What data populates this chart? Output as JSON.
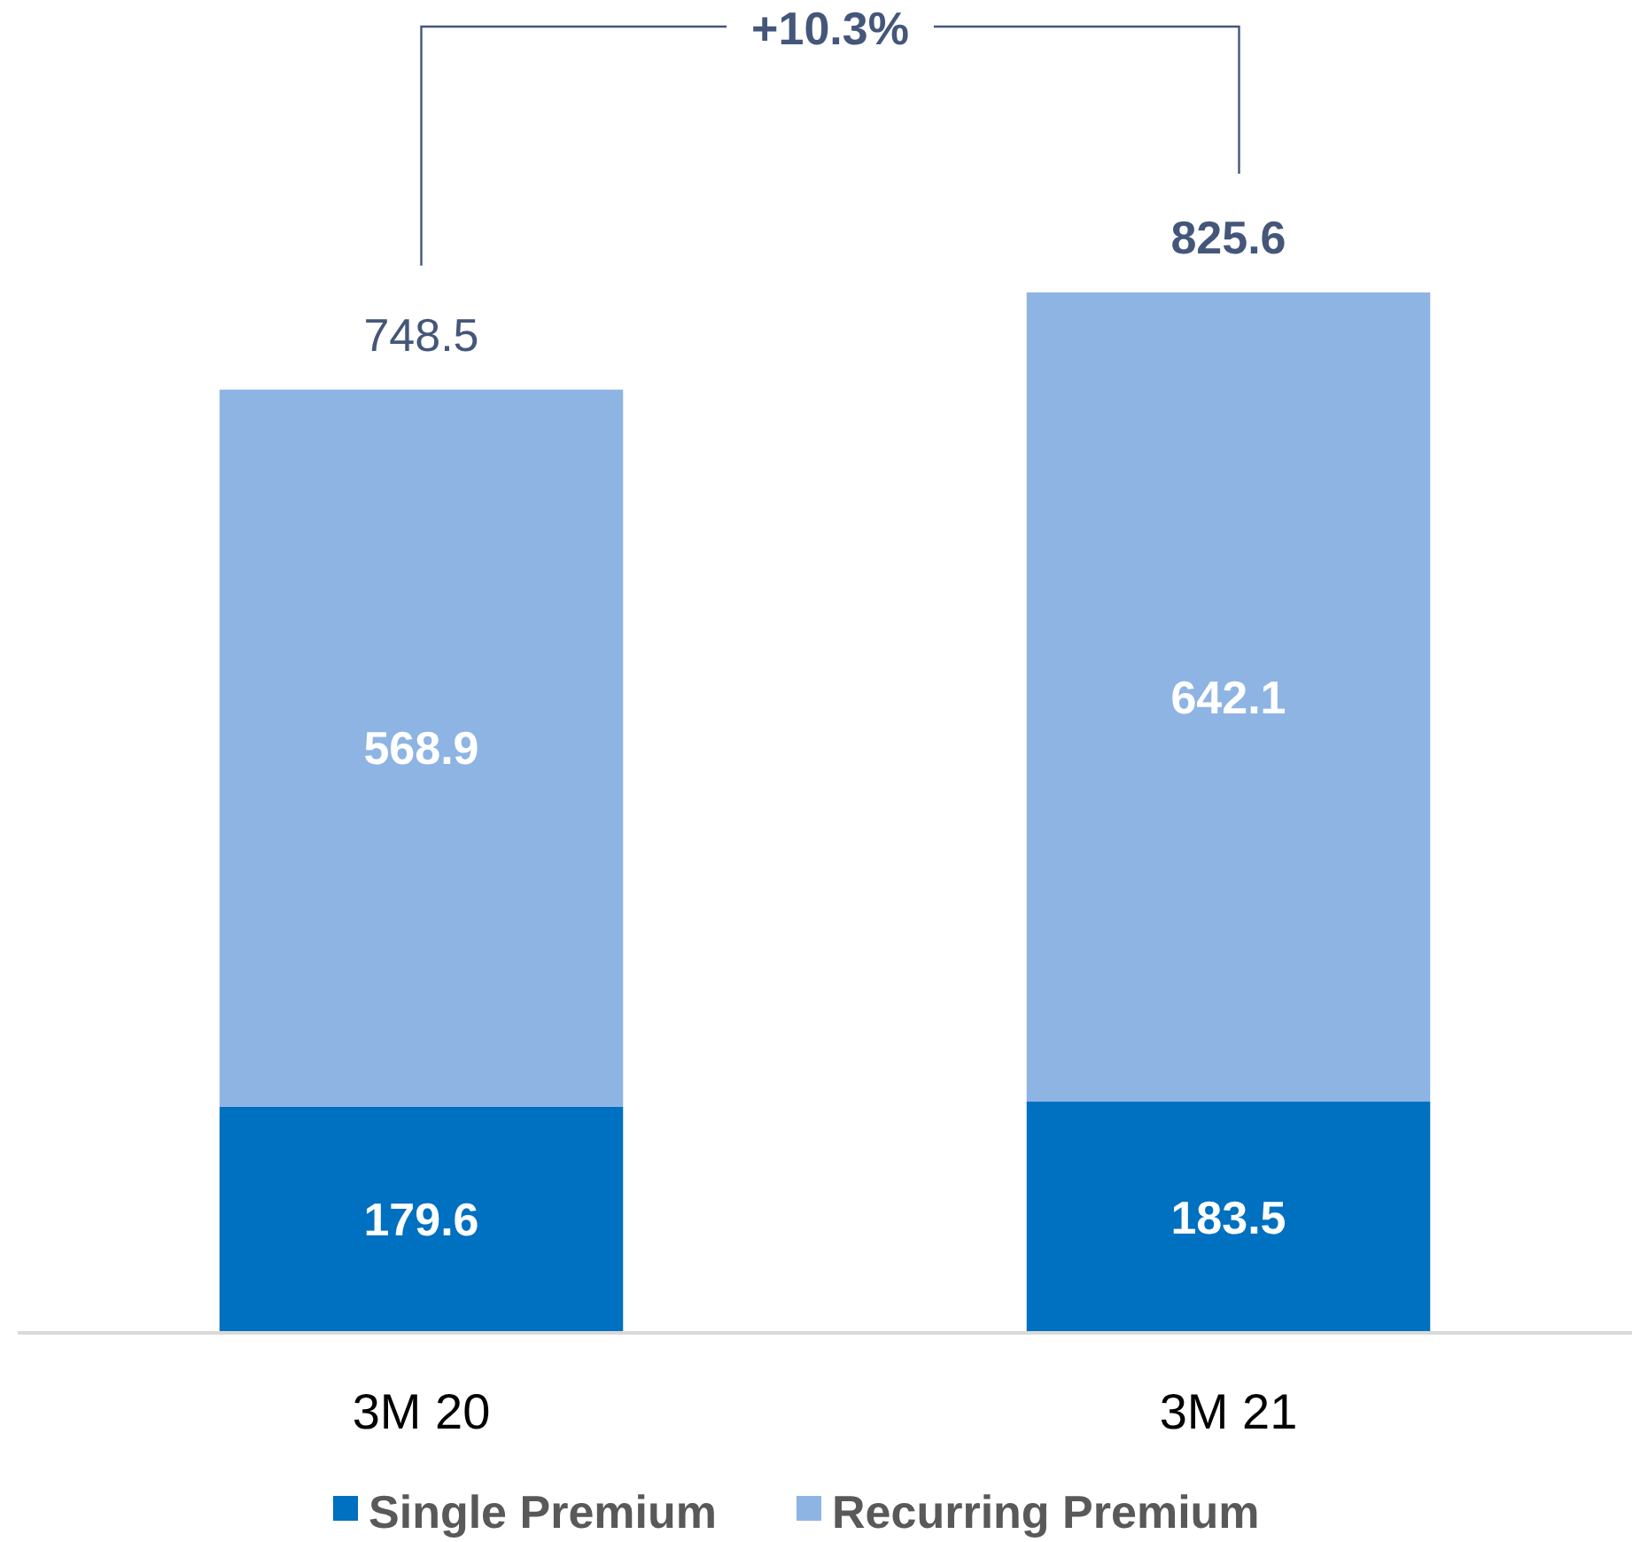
{
  "chart_data": {
    "type": "bar",
    "stacked": true,
    "categories": [
      "3M 20",
      "3M 21"
    ],
    "series": [
      {
        "name": "Single Premium",
        "color": "#0070c0",
        "values": [
          179.6,
          183.5
        ]
      },
      {
        "name": "Recurring Premium",
        "color": "#8eb4e3",
        "values": [
          568.9,
          642.1
        ]
      }
    ],
    "data_labels": true,
    "totals": [
      "748.5",
      "825.6"
    ],
    "annotations": [
      "+10.3%"
    ],
    "legend": "bottom"
  }
}
